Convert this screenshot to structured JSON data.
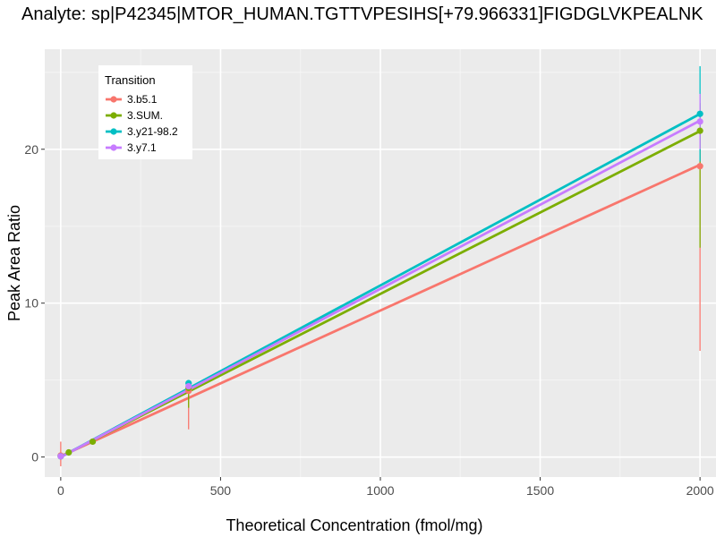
{
  "chart_data": {
    "type": "line",
    "title": "Analyte: sp|P42345|MTOR_HUMAN.TGTTVPESIHS[+79.966331]FIGDGLVKPEALNK",
    "xlabel": "Theoretical Concentration (fmol/mg)",
    "ylabel": "Peak Area Ratio",
    "xlim": [
      -50,
      2050
    ],
    "ylim": [
      -1.3,
      26.5
    ],
    "x_ticks": [
      0,
      500,
      1000,
      1500,
      2000
    ],
    "x_tick_labels": [
      "0",
      "500",
      "1000",
      "1500",
      "2000"
    ],
    "y_ticks": [
      0,
      10,
      20
    ],
    "y_tick_labels": [
      "0",
      "10",
      "20"
    ],
    "grid": true,
    "legend": {
      "title": "Transition",
      "position": "top-left"
    },
    "series": [
      {
        "name": "3.b5.1",
        "color": "#F8766D",
        "fit": {
          "slope": 0.00947,
          "intercept": 0.05
        },
        "points": [
          {
            "x": 0,
            "y": 0.1,
            "err_low": -0.6,
            "err_high": 1.0
          },
          {
            "x": 400,
            "y": 4.3,
            "err_low": 1.8,
            "err_high": 4.6
          },
          {
            "x": 2000,
            "y": 18.9,
            "err_low": 6.9,
            "err_high": 22.1
          }
        ]
      },
      {
        "name": "3.SUM.",
        "color": "#7CAE00",
        "fit": {
          "slope": 0.01058,
          "intercept": 0.02
        },
        "points": [
          {
            "x": 0,
            "y": 0.05,
            "err_low": 0.0,
            "err_high": 0.1
          },
          {
            "x": 25,
            "y": 0.3,
            "err_low": 0.2,
            "err_high": 0.4
          },
          {
            "x": 100,
            "y": 1.0,
            "err_low": 0.9,
            "err_high": 1.1
          },
          {
            "x": 400,
            "y": 4.5,
            "err_low": 3.2,
            "err_high": 4.8
          },
          {
            "x": 2000,
            "y": 21.2,
            "err_low": 13.6,
            "err_high": 23.0
          }
        ]
      },
      {
        "name": "3.y21-98.2",
        "color": "#00BFC4",
        "fit": {
          "slope": 0.01115,
          "intercept": 0.0
        },
        "points": [
          {
            "x": 0,
            "y": 0.05,
            "err_low": 0.0,
            "err_high": 0.1
          },
          {
            "x": 400,
            "y": 4.8,
            "err_low": 4.5,
            "err_high": 5.0
          },
          {
            "x": 2000,
            "y": 22.3,
            "err_low": 19.2,
            "err_high": 25.4
          }
        ]
      },
      {
        "name": "3.y7.1",
        "color": "#C77CFF",
        "fit": {
          "slope": 0.01093,
          "intercept": 0.0
        },
        "points": [
          {
            "x": 0,
            "y": 0.05,
            "err_low": 0.0,
            "err_high": 0.1
          },
          {
            "x": 400,
            "y": 4.6,
            "err_low": 4.4,
            "err_high": 4.8
          },
          {
            "x": 2000,
            "y": 21.8,
            "err_low": 20.0,
            "err_high": 23.6
          }
        ]
      }
    ]
  }
}
